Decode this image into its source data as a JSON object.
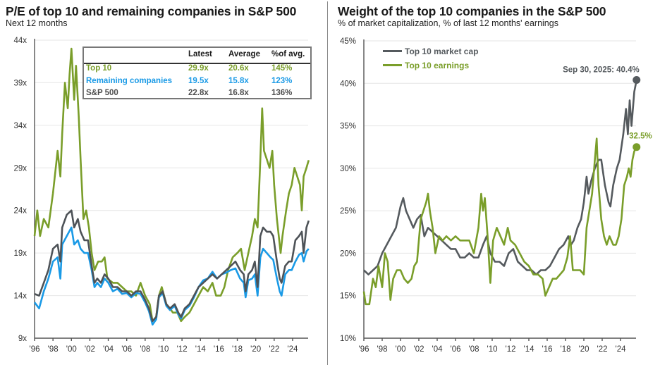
{
  "left_chart": {
    "title": "P/E of top 10 and remaining companies in S&P 500",
    "subtitle": "Next 12 months",
    "table": {
      "headers": [
        "",
        "Latest",
        "Average",
        "%of avg."
      ],
      "rows": [
        {
          "name": "Top 10",
          "latest": "29.9x",
          "average": "20.6x",
          "pct": "145%",
          "color": "#7a9e2a"
        },
        {
          "name": "Remaining companies",
          "latest": "19.5x",
          "average": "15.8x",
          "pct": "123%",
          "color": "#1a9ae6"
        },
        {
          "name": "S&P 500",
          "latest": "22.8x",
          "average": "16.8x",
          "pct": "136%",
          "color": "#4d4d4d"
        }
      ]
    }
  },
  "right_chart": {
    "title": "Weight of the top 10 companies in the S&P 500",
    "subtitle": "% of market capitalization, % of last 12 months' earnings",
    "legend": [
      {
        "label": "Top 10 market cap",
        "color": "#555a5e"
      },
      {
        "label": "Top 10 earnings",
        "color": "#7a9e2a"
      }
    ],
    "annotations": {
      "market_cap_end": "Sep 30, 2025: 40.4%",
      "earnings_end": "32.5%"
    }
  },
  "chart_data": [
    {
      "type": "line",
      "title": "P/E of top 10 and remaining companies in S&P 500",
      "subtitle": "Next 12 months",
      "xlabel": "",
      "ylabel": "",
      "xlim": [
        1996,
        2025.9
      ],
      "ylim": [
        9,
        44
      ],
      "yticks": [
        9,
        14,
        19,
        24,
        29,
        34,
        39,
        44
      ],
      "ytick_labels": [
        "9x",
        "14x",
        "19x",
        "24x",
        "29x",
        "34x",
        "39x",
        "44x"
      ],
      "xticks": [
        1996,
        1998,
        2000,
        2002,
        2004,
        2006,
        2008,
        2010,
        2012,
        2014,
        2016,
        2018,
        2020,
        2022,
        2024
      ],
      "xtick_labels": [
        "'96",
        "'98",
        "'00",
        "'02",
        "'04",
        "'06",
        "'08",
        "'10",
        "'12",
        "'14",
        "'16",
        "'18",
        "'20",
        "'22",
        "'24"
      ],
      "grid": "horizontal",
      "series": [
        {
          "name": "Top 10",
          "color": "#7a9e2a",
          "x": [
            1996,
            1996.3,
            1996.6,
            1997,
            1997.5,
            1998,
            1998.5,
            1998.8,
            1999,
            1999.3,
            1999.6,
            1999.8,
            2000.0,
            2000.3,
            2000.5,
            2000.8,
            2001.0,
            2001.3,
            2001.6,
            2001.9,
            2002.2,
            2002.5,
            2002.9,
            2003.3,
            2003.6,
            2003.9,
            2004.5,
            2005,
            2005.5,
            2006,
            2006.5,
            2007,
            2007.5,
            2008,
            2008.5,
            2008.8,
            2009.2,
            2009.5,
            2009.8,
            2010.3,
            2010.7,
            2011,
            2011.5,
            2011.9,
            2012.3,
            2012.8,
            2013.3,
            2013.8,
            2014.3,
            2014.8,
            2015.3,
            2015.7,
            2016.2,
            2016.6,
            2017,
            2017.5,
            2018,
            2018.4,
            2018.8,
            2019.2,
            2019.6,
            2019.9,
            2020.2,
            2020.5,
            2020.7,
            2020.9,
            2021.2,
            2021.5,
            2021.8,
            2022.0,
            2022.3,
            2022.7,
            2022.9,
            2023.3,
            2023.6,
            2023.9,
            2024.2,
            2024.5,
            2024.8,
            2025.0,
            2025.2,
            2025.5,
            2025.75
          ],
          "values": [
            21,
            24,
            21,
            23,
            22,
            26,
            31,
            28,
            33,
            39,
            36,
            40,
            43,
            37,
            41,
            35,
            30,
            23,
            24,
            22,
            19,
            17,
            18,
            18,
            18.5,
            16,
            15.5,
            15.5,
            15,
            14.5,
            14.5,
            14,
            15.5,
            14,
            13,
            11,
            11.5,
            14,
            15,
            13,
            12.5,
            12,
            12,
            11,
            11.5,
            12,
            13,
            14,
            15,
            14.5,
            15.5,
            14,
            14,
            15,
            17,
            18.5,
            19,
            19.5,
            17,
            19,
            21,
            23,
            22,
            30,
            36,
            31,
            30,
            29,
            31,
            27,
            23,
            19,
            21,
            24,
            26,
            27,
            29,
            28,
            27,
            24,
            28,
            29,
            29.9
          ]
        },
        {
          "name": "Remaining companies",
          "color": "#1a9ae6",
          "x": [
            1996,
            1996.5,
            1997,
            1997.5,
            1998,
            1998.5,
            1998.8,
            1999,
            1999.5,
            2000,
            2000.3,
            2000.7,
            2001,
            2001.4,
            2001.8,
            2002.2,
            2002.5,
            2002.8,
            2003.2,
            2003.6,
            2004,
            2004.5,
            2005,
            2005.5,
            2006,
            2006.5,
            2007,
            2007.5,
            2008,
            2008.4,
            2008.8,
            2009.2,
            2009.5,
            2009.9,
            2010.3,
            2010.7,
            2011.2,
            2011.6,
            2011.9,
            2012.3,
            2012.8,
            2013.3,
            2013.8,
            2014.3,
            2014.8,
            2015.3,
            2015.8,
            2016.3,
            2016.8,
            2017.3,
            2017.8,
            2018.3,
            2018.7,
            2018.9,
            2019.2,
            2019.6,
            2019.9,
            2020.2,
            2020.5,
            2020.8,
            2021.2,
            2021.6,
            2021.9,
            2022.3,
            2022.6,
            2022.8,
            2023.2,
            2023.6,
            2023.9,
            2024.3,
            2024.7,
            2025.0,
            2025.2,
            2025.5,
            2025.75
          ],
          "values": [
            13.2,
            12.5,
            14.5,
            16,
            18,
            18.5,
            16,
            20,
            21,
            22,
            20,
            20.5,
            19.5,
            19,
            19,
            17,
            15,
            15.5,
            15,
            16,
            15.5,
            14.5,
            14.8,
            14.2,
            14.3,
            13.8,
            14.3,
            14.2,
            13.2,
            12.2,
            10.6,
            11.2,
            13.8,
            14.3,
            12.8,
            12.3,
            12.8,
            11.8,
            11.3,
            12.3,
            12.8,
            13.8,
            15,
            15.8,
            16,
            16.8,
            16,
            16.5,
            16.7,
            17,
            17.2,
            16,
            15.5,
            13.8,
            15.8,
            16,
            16.5,
            14,
            18.5,
            19.5,
            19,
            18.5,
            18.2,
            16,
            14.5,
            14,
            16.5,
            17,
            17,
            18,
            18.8,
            19,
            18,
            19.2,
            19.5
          ]
        },
        {
          "name": "S&P 500",
          "color": "#4d5257",
          "x": [
            1996,
            1996.5,
            1997,
            1997.5,
            1998,
            1998.5,
            1998.8,
            1999,
            1999.5,
            2000,
            2000.3,
            2000.7,
            2001,
            2001.4,
            2001.8,
            2002.2,
            2002.5,
            2002.8,
            2003.2,
            2003.6,
            2004,
            2004.5,
            2005,
            2005.5,
            2006,
            2006.5,
            2007,
            2007.5,
            2008,
            2008.4,
            2008.8,
            2009.2,
            2009.5,
            2009.9,
            2010.3,
            2010.7,
            2011.2,
            2011.6,
            2011.9,
            2012.3,
            2012.8,
            2013.3,
            2013.8,
            2014.3,
            2014.8,
            2015.3,
            2015.8,
            2016.3,
            2016.8,
            2017.3,
            2017.8,
            2018.3,
            2018.7,
            2018.9,
            2019.2,
            2019.6,
            2019.9,
            2020.2,
            2020.5,
            2020.8,
            2021.2,
            2021.6,
            2021.9,
            2022.3,
            2022.6,
            2022.8,
            2023.2,
            2023.6,
            2023.9,
            2024.3,
            2024.7,
            2025.0,
            2025.2,
            2025.5,
            2025.75
          ],
          "values": [
            14.2,
            14,
            15.5,
            17,
            19.5,
            20,
            18,
            22,
            23.5,
            24,
            22,
            23,
            21.5,
            20.5,
            20.5,
            17.5,
            15.5,
            16,
            15.5,
            16.5,
            16,
            15,
            15,
            14.5,
            14.5,
            14,
            14.5,
            14.5,
            13.5,
            12.5,
            11,
            11.5,
            14,
            14.5,
            13,
            12.5,
            13,
            12,
            11.5,
            12.5,
            13,
            14,
            15,
            15.5,
            16,
            16.5,
            16,
            16.5,
            17,
            17.5,
            18,
            17,
            16.5,
            14.5,
            16.5,
            17,
            18,
            15,
            21,
            22,
            21.5,
            21.5,
            21,
            18,
            16,
            15.5,
            17.5,
            18,
            18,
            20.5,
            21,
            21.5,
            19,
            22,
            22.8
          ]
        }
      ]
    },
    {
      "type": "line",
      "title": "Weight of the top 10 companies in the S&P 500",
      "subtitle": "% of market capitalization, % of last 12 months' earnings",
      "xlabel": "",
      "ylabel": "",
      "xlim": [
        1996,
        2025.9
      ],
      "ylim": [
        10,
        45
      ],
      "yticks": [
        10,
        15,
        20,
        25,
        30,
        35,
        40,
        45
      ],
      "ytick_labels": [
        "10%",
        "15%",
        "20%",
        "25%",
        "30%",
        "35%",
        "40%",
        "45%"
      ],
      "xticks": [
        1996,
        1998,
        2000,
        2002,
        2004,
        2006,
        2008,
        2010,
        2012,
        2014,
        2016,
        2018,
        2020,
        2022,
        2024
      ],
      "xtick_labels": [
        "'96",
        "'98",
        "'00",
        "'02",
        "'04",
        "'06",
        "'08",
        "'10",
        "'12",
        "'14",
        "'16",
        "'18",
        "'20",
        "'22",
        "'24"
      ],
      "grid": "horizontal",
      "legend_position": "top-left",
      "series": [
        {
          "name": "Top 10 market cap",
          "color": "#555a5e",
          "x": [
            1996,
            1996.5,
            1997,
            1997.5,
            1998,
            1998.5,
            1999,
            1999.5,
            2000,
            2000.3,
            2000.6,
            2001,
            2001.4,
            2001.8,
            2002.2,
            2002.6,
            2003,
            2003.5,
            2004,
            2004.5,
            2005,
            2005.5,
            2006,
            2006.5,
            2007,
            2007.5,
            2008,
            2008.5,
            2009,
            2009.4,
            2009.8,
            2010.3,
            2010.8,
            2011.3,
            2011.8,
            2012.3,
            2012.8,
            2013.3,
            2013.8,
            2014.3,
            2014.8,
            2015.3,
            2015.8,
            2016.3,
            2016.8,
            2017.3,
            2017.8,
            2018.3,
            2018.6,
            2018.9,
            2019.3,
            2019.7,
            2020.0,
            2020.3,
            2020.5,
            2020.8,
            2021.2,
            2021.6,
            2021.9,
            2022.3,
            2022.7,
            2022.9,
            2023.2,
            2023.6,
            2023.9,
            2024.3,
            2024.6,
            2024.8,
            2025.0,
            2025.2,
            2025.5,
            2025.75
          ],
          "values": [
            18,
            17.5,
            18,
            18.5,
            20,
            21,
            22,
            23,
            25.5,
            26.5,
            25,
            24,
            23,
            24,
            24.5,
            22,
            23,
            22.5,
            22,
            21.5,
            21,
            20.5,
            20.5,
            19.5,
            19.5,
            20,
            19.5,
            19.5,
            21,
            22,
            20,
            19,
            19,
            18.5,
            20,
            20.5,
            19,
            18.5,
            18,
            18,
            17.5,
            18,
            18,
            18.5,
            19.5,
            20.5,
            21,
            22,
            21,
            21.5,
            23,
            24,
            26,
            29,
            27,
            28.5,
            30,
            31,
            31,
            28,
            26,
            25.5,
            28,
            30,
            31,
            34,
            37,
            34,
            38,
            35,
            39,
            40.4
          ]
        },
        {
          "name": "Top 10 earnings",
          "color": "#7a9e2a",
          "x": [
            1996,
            1996.2,
            1996.6,
            1997,
            1997.3,
            1997.6,
            1998,
            1998.3,
            1998.6,
            1998.9,
            1999.2,
            1999.6,
            2000,
            2000.4,
            2000.8,
            2001.2,
            2001.5,
            2001.8,
            2002.2,
            2002.5,
            2002.8,
            2003,
            2003.2,
            2003.5,
            2003.8,
            2004.2,
            2004.6,
            2005,
            2005.5,
            2006,
            2006.5,
            2007,
            2007.5,
            2008,
            2008.5,
            2008.8,
            2009.0,
            2009.2,
            2009.5,
            2009.8,
            2010.1,
            2010.5,
            2010.9,
            2011.3,
            2011.7,
            2012,
            2012.5,
            2013,
            2013.5,
            2014,
            2014.5,
            2015,
            2015.5,
            2015.8,
            2016.2,
            2016.6,
            2017.0,
            2017.4,
            2017.8,
            2018.2,
            2018.5,
            2018.8,
            2019.2,
            2019.6,
            2020.0,
            2020.3,
            2020.6,
            2020.9,
            2021.2,
            2021.4,
            2021.6,
            2021.9,
            2022.2,
            2022.5,
            2022.8,
            2023.2,
            2023.5,
            2023.8,
            2024.1,
            2024.4,
            2024.7,
            2024.9,
            2025.1,
            2025.3,
            2025.5,
            2025.75
          ],
          "values": [
            15.5,
            14,
            14,
            17,
            16,
            18.5,
            16,
            20,
            19,
            14.5,
            17,
            18,
            18,
            17,
            16.5,
            17,
            18.5,
            19,
            24,
            25,
            26,
            27,
            25,
            23,
            20,
            22,
            21.5,
            22,
            21.5,
            22,
            21.5,
            21.5,
            21.5,
            20,
            23,
            27,
            25,
            26.5,
            22,
            16.5,
            21.5,
            23,
            22,
            21,
            23,
            21.5,
            21,
            20,
            19,
            18.5,
            17.5,
            17.5,
            17,
            15,
            16,
            17,
            17,
            17.5,
            18,
            19.5,
            22,
            18,
            18,
            18,
            17.5,
            23,
            25,
            27,
            31,
            33.5,
            28,
            24,
            22,
            21,
            22,
            21,
            21,
            22,
            24,
            28,
            29,
            30,
            29,
            31,
            32,
            32.5
          ]
        }
      ]
    }
  ]
}
